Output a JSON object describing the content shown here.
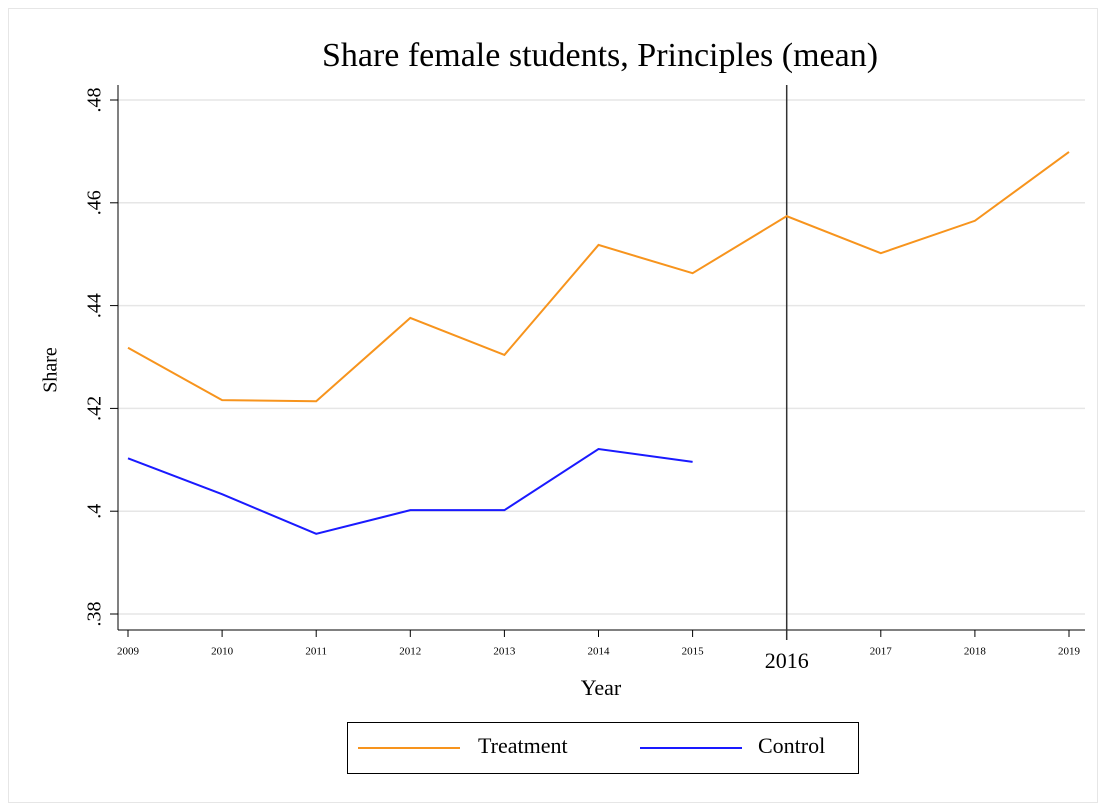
{
  "chart_data": {
    "type": "line",
    "title": "Share female students, Principles (mean)",
    "x_label": "Year",
    "y_label": "Share",
    "x": [
      2009,
      2010,
      2011,
      2012,
      2013,
      2014,
      2015,
      2016,
      2017,
      2018,
      2019
    ],
    "series": [
      {
        "name": "Treatment",
        "color": "#f7941d",
        "values": [
          0.4318,
          0.4216,
          0.4214,
          0.4376,
          0.4304,
          0.4518,
          0.4463,
          0.4574,
          0.4502,
          0.4565,
          0.4699
        ]
      },
      {
        "name": "Control",
        "color": "#1a1aff",
        "values": [
          0.4103,
          0.4033,
          0.3956,
          0.4002,
          0.4002,
          0.4121,
          0.4096,
          null,
          null,
          null,
          null
        ]
      }
    ],
    "xlim": [
      2009,
      2019
    ],
    "xticks": [
      2009,
      2010,
      2011,
      2012,
      2013,
      2014,
      2015,
      2017,
      2018,
      2019
    ],
    "ylim": [
      0.38,
      0.48
    ],
    "yticks": [
      {
        "value": 0.38,
        "label": ".38"
      },
      {
        "value": 0.4,
        "label": ".4"
      },
      {
        "value": 0.42,
        "label": ".42"
      },
      {
        "value": 0.44,
        "label": ".44"
      },
      {
        "value": 0.46,
        "label": ".46"
      },
      {
        "value": 0.48,
        "label": ".48"
      }
    ],
    "vline": {
      "x": 2016
    },
    "grid": true,
    "legend": "bottom"
  }
}
